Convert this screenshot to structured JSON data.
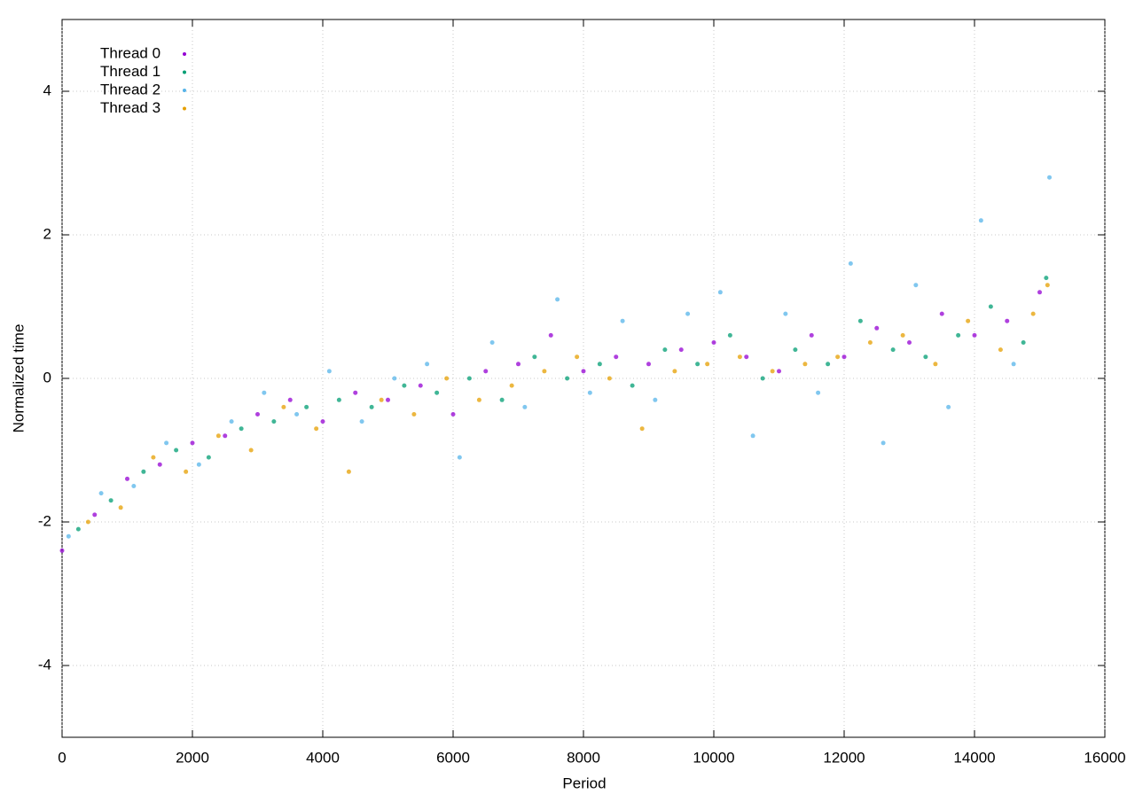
{
  "chart_data": {
    "type": "scatter",
    "xlabel": "Period",
    "ylabel": "Normalized time",
    "xlim": [
      0,
      16000
    ],
    "xticks": [
      0,
      2000,
      4000,
      6000,
      8000,
      10000,
      12000,
      14000,
      16000
    ],
    "ylim": [
      -5,
      5
    ],
    "yticks": [
      -4,
      -2,
      0,
      2,
      4
    ],
    "grid": true,
    "legend": "top-left",
    "series": [
      {
        "name": "Thread 0",
        "color": "#9400d3",
        "x": [
          0,
          500,
          1000,
          1500,
          2000,
          2500,
          3000,
          3500,
          4000,
          4500,
          5000,
          5500,
          6000,
          6500,
          7000,
          7500,
          8000,
          8500,
          9000,
          9500,
          10000,
          10500,
          11000,
          11500,
          12000,
          12500,
          13000,
          13500,
          14000,
          14500,
          15000
        ],
        "values": [
          -2.4,
          -1.9,
          -1.4,
          -1.2,
          -0.9,
          -0.8,
          -0.5,
          -0.3,
          -0.6,
          -0.2,
          -0.3,
          -0.1,
          -0.5,
          0.1,
          0.2,
          0.6,
          0.1,
          0.3,
          0.2,
          0.4,
          0.5,
          0.3,
          0.1,
          0.6,
          0.3,
          0.7,
          0.5,
          0.9,
          0.6,
          0.8,
          1.2
        ]
      },
      {
        "name": "Thread 1",
        "color": "#009e73",
        "x": [
          250,
          750,
          1250,
          1750,
          2250,
          2750,
          3250,
          3750,
          4250,
          4750,
          5250,
          5750,
          6250,
          6750,
          7250,
          7750,
          8250,
          8750,
          9250,
          9750,
          10250,
          10750,
          11250,
          11750,
          12250,
          12750,
          13250,
          13750,
          14250,
          14750,
          15100
        ],
        "values": [
          -2.1,
          -1.7,
          -1.3,
          -1.0,
          -1.1,
          -0.7,
          -0.6,
          -0.4,
          -0.3,
          -0.4,
          -0.1,
          -0.2,
          0.0,
          -0.3,
          0.3,
          0.0,
          0.2,
          -0.1,
          0.4,
          0.2,
          0.6,
          0.0,
          0.4,
          0.2,
          0.8,
          0.4,
          0.3,
          0.6,
          1.0,
          0.5,
          1.4
        ]
      },
      {
        "name": "Thread 2",
        "color": "#56b4e9",
        "x": [
          100,
          600,
          1100,
          1600,
          2100,
          2600,
          3100,
          3600,
          4100,
          4600,
          5100,
          5600,
          6100,
          6600,
          7100,
          7600,
          8100,
          8600,
          9100,
          9600,
          10100,
          10600,
          11100,
          11600,
          12100,
          12600,
          13100,
          13600,
          14100,
          14600,
          15150
        ],
        "values": [
          -2.2,
          -1.6,
          -1.5,
          -0.9,
          -1.2,
          -0.6,
          -0.2,
          -0.5,
          0.1,
          -0.6,
          0.0,
          0.2,
          -1.1,
          0.5,
          -0.4,
          1.1,
          -0.2,
          0.8,
          -0.3,
          0.9,
          1.2,
          -0.8,
          0.9,
          -0.2,
          1.6,
          -0.9,
          1.3,
          -0.4,
          2.2,
          0.2,
          2.8
        ]
      },
      {
        "name": "Thread 3",
        "color": "#e69f00",
        "x": [
          400,
          900,
          1400,
          1900,
          2400,
          2900,
          3400,
          3900,
          4400,
          4900,
          5400,
          5900,
          6400,
          6900,
          7400,
          7900,
          8400,
          8900,
          9400,
          9900,
          10400,
          10900,
          11400,
          11900,
          12400,
          12900,
          13400,
          13900,
          14400,
          14900,
          15120
        ],
        "values": [
          -2.0,
          -1.8,
          -1.1,
          -1.3,
          -0.8,
          -1.0,
          -0.4,
          -0.7,
          -1.3,
          -0.3,
          -0.5,
          0.0,
          -0.3,
          -0.1,
          0.1,
          0.3,
          0.0,
          -0.7,
          0.1,
          0.2,
          0.3,
          0.1,
          0.2,
          0.3,
          0.5,
          0.6,
          0.2,
          0.8,
          0.4,
          0.9,
          1.3
        ]
      }
    ]
  }
}
